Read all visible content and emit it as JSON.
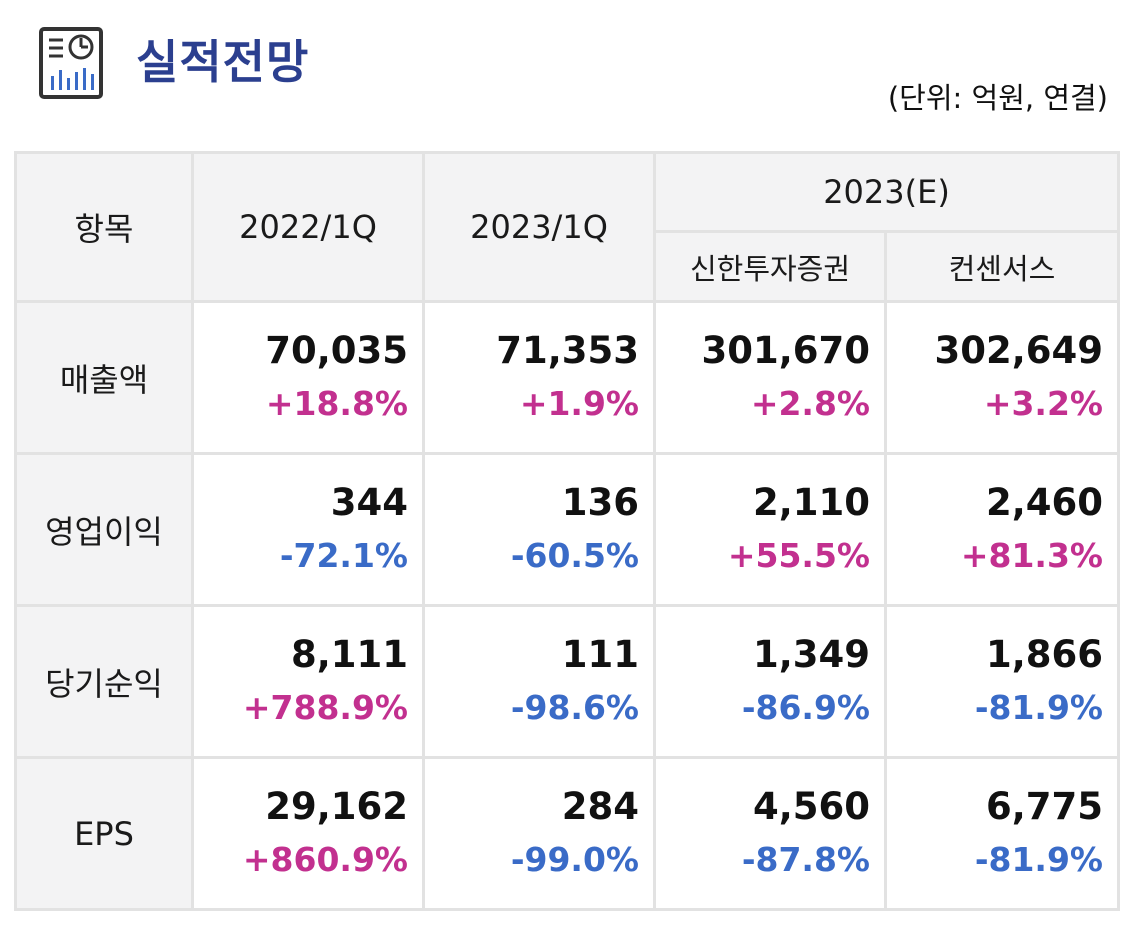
{
  "header": {
    "icon": "report-chart-icon",
    "title": "실적전망",
    "unit": "(단위: 억원, 연결)"
  },
  "colors": {
    "title": "#2b3f8f",
    "positive": "#c2308f",
    "negative": "#3a6bc7",
    "header_bg": "#f3f3f4",
    "border": "#e2e2e2"
  },
  "table": {
    "headers": {
      "item": "항목",
      "col1": "2022/1Q",
      "col2": "2023/1Q",
      "estimate_group": "2023(E)",
      "col3": "신한투자증권",
      "col4": "컨센서스"
    },
    "rows": [
      {
        "label": "매출액",
        "values": [
          {
            "value": "70,035",
            "change": "+18.8%",
            "sign": "pos"
          },
          {
            "value": "71,353",
            "change": "+1.9%",
            "sign": "pos"
          },
          {
            "value": "301,670",
            "change": "+2.8%",
            "sign": "pos"
          },
          {
            "value": "302,649",
            "change": "+3.2%",
            "sign": "pos"
          }
        ]
      },
      {
        "label": "영업이익",
        "values": [
          {
            "value": "344",
            "change": "-72.1%",
            "sign": "neg"
          },
          {
            "value": "136",
            "change": "-60.5%",
            "sign": "neg"
          },
          {
            "value": "2,110",
            "change": "+55.5%",
            "sign": "pos"
          },
          {
            "value": "2,460",
            "change": "+81.3%",
            "sign": "pos"
          }
        ]
      },
      {
        "label": "당기순익",
        "values": [
          {
            "value": "8,111",
            "change": "+788.9%",
            "sign": "pos"
          },
          {
            "value": "111",
            "change": "-98.6%",
            "sign": "neg"
          },
          {
            "value": "1,349",
            "change": "-86.9%",
            "sign": "neg"
          },
          {
            "value": "1,866",
            "change": "-81.9%",
            "sign": "neg"
          }
        ]
      },
      {
        "label": "EPS",
        "values": [
          {
            "value": "29,162",
            "change": "+860.9%",
            "sign": "pos"
          },
          {
            "value": "284",
            "change": "-99.0%",
            "sign": "neg"
          },
          {
            "value": "4,560",
            "change": "-87.8%",
            "sign": "neg"
          },
          {
            "value": "6,775",
            "change": "-81.9%",
            "sign": "neg"
          }
        ]
      }
    ]
  }
}
